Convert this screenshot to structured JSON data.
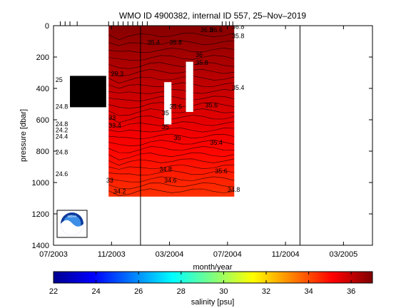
{
  "figure": {
    "title": "WMO ID 4900382, internal ID 557, 25–Nov–2019",
    "logo_text": "NOAA"
  },
  "chart_data": [
    {
      "type": "heatmap",
      "title": "WMO ID 4900382, internal ID 557, 25–Nov–2019",
      "xlabel": "month/year",
      "ylabel": "pressure [dbar]",
      "x_tick_labels": [
        "07/2003",
        "11/2003",
        "03/2004",
        "07/2004",
        "11/2004",
        "03/2005"
      ],
      "x_ticks": [
        "2003-07",
        "2003-11",
        "2004-03",
        "2004-07",
        "2004-11",
        "2005-03"
      ],
      "xlim": [
        "2003-07",
        "2005-05"
      ],
      "y_ticks": [
        0,
        200,
        400,
        600,
        800,
        1000,
        1200,
        1400
      ],
      "ylim": [
        1400,
        0
      ],
      "y_reversed": true,
      "grid": false,
      "vertical_lines": [
        "2004-01",
        "2004-12"
      ],
      "profile_ticks": [
        "2003-07-15",
        "2003-07-25",
        "2003-08-05",
        "2003-08-20",
        "2003-10-25",
        "2003-11-05",
        "2003-11-15",
        "2003-11-25",
        "2003-12-05",
        "2003-12-15",
        "2003-12-25",
        "2004-01-05",
        "2004-01-15",
        "2004-06-20",
        "2004-06-28",
        "2004-07-05",
        "2004-07-12"
      ],
      "data_regions": [
        {
          "x": [
            "2003-10-25",
            "2004-07-15"
          ],
          "pressure": [
            0,
            1090
          ],
          "salinity": [
            34.4,
            36.9
          ]
        },
        {
          "x": [
            "2003-08-05",
            "2003-10-20"
          ],
          "pressure": [
            320,
            520
          ],
          "salinity": null
        }
      ],
      "gaps": [
        {
          "x": [
            "2004-02-20",
            "2004-03-05"
          ],
          "pressure": [
            360,
            630
          ]
        },
        {
          "x": [
            "2004-04-05",
            "2004-04-20"
          ],
          "pressure": [
            230,
            550
          ]
        }
      ],
      "contour_labels": [
        {
          "text": "24.2",
          "x": "2003-07-05",
          "pressure": 680
        },
        {
          "text": "24.4",
          "x": "2003-07-05",
          "pressure": 720
        },
        {
          "text": "24.8",
          "x": "2003-07-05",
          "pressure": 820
        },
        {
          "text": "24.6",
          "x": "2003-07-05",
          "pressure": 960
        },
        {
          "text": "24.8",
          "x": "2003-07-05",
          "pressure": 530
        },
        {
          "text": "24.8",
          "x": "2003-07-05",
          "pressure": 640
        },
        {
          "text": "25",
          "x": "2003-07-05",
          "pressure": 360
        },
        {
          "text": "29.3",
          "x": "2003-10-30",
          "pressure": 320
        },
        {
          "text": "33",
          "x": "2003-10-20",
          "pressure": 1000
        },
        {
          "text": "34.2",
          "x": "2003-11-05",
          "pressure": 1070
        },
        {
          "text": "33",
          "x": "2003-10-25",
          "pressure": 600
        },
        {
          "text": "33.4",
          "x": "2003-10-25",
          "pressure": 650
        },
        {
          "text": "35.4",
          "x": "2004-01-15",
          "pressure": 120
        },
        {
          "text": "35.8",
          "x": "2004-03-01",
          "pressure": 120
        },
        {
          "text": "35.6",
          "x": "2004-03-01",
          "pressure": 530
        },
        {
          "text": "35",
          "x": "2004-02-15",
          "pressure": 570
        },
        {
          "text": "35",
          "x": "2004-02-15",
          "pressure": 660
        },
        {
          "text": "34.8",
          "x": "2004-02-10",
          "pressure": 930
        },
        {
          "text": "34.6",
          "x": "2004-02-20",
          "pressure": 1000
        },
        {
          "text": "35",
          "x": "2004-03-10",
          "pressure": 730
        },
        {
          "text": "35.8",
          "x": "2004-04-25",
          "pressure": 250
        },
        {
          "text": "36",
          "x": "2004-04-25",
          "pressure": 200
        },
        {
          "text": "35.6",
          "x": "2004-05-15",
          "pressure": 520
        },
        {
          "text": "35.4",
          "x": "2004-05-25",
          "pressure": 760
        },
        {
          "text": "35.6",
          "x": "2004-06-05",
          "pressure": 940
        },
        {
          "text": "34.8",
          "x": "2004-07-01",
          "pressure": 1060
        },
        {
          "text": "36.8",
          "x": "2004-05-05",
          "pressure": 40
        },
        {
          "text": "36.6",
          "x": "2004-05-25",
          "pressure": 40
        },
        {
          "text": "36.8",
          "x": "2004-07-10",
          "pressure": 20
        },
        {
          "text": "35.8",
          "x": "2004-07-10",
          "pressure": 80
        },
        {
          "text": "35.4",
          "x": "2004-07-10",
          "pressure": 410
        }
      ]
    },
    {
      "type": "colorbar",
      "label": "salinity [psu]",
      "range": [
        22,
        37
      ],
      "tick_labels": [
        "22",
        "24",
        "26",
        "28",
        "30",
        "32",
        "34",
        "36"
      ],
      "ticks": [
        22,
        24,
        26,
        28,
        30,
        32,
        34,
        36
      ],
      "colormap": "jet"
    }
  ]
}
